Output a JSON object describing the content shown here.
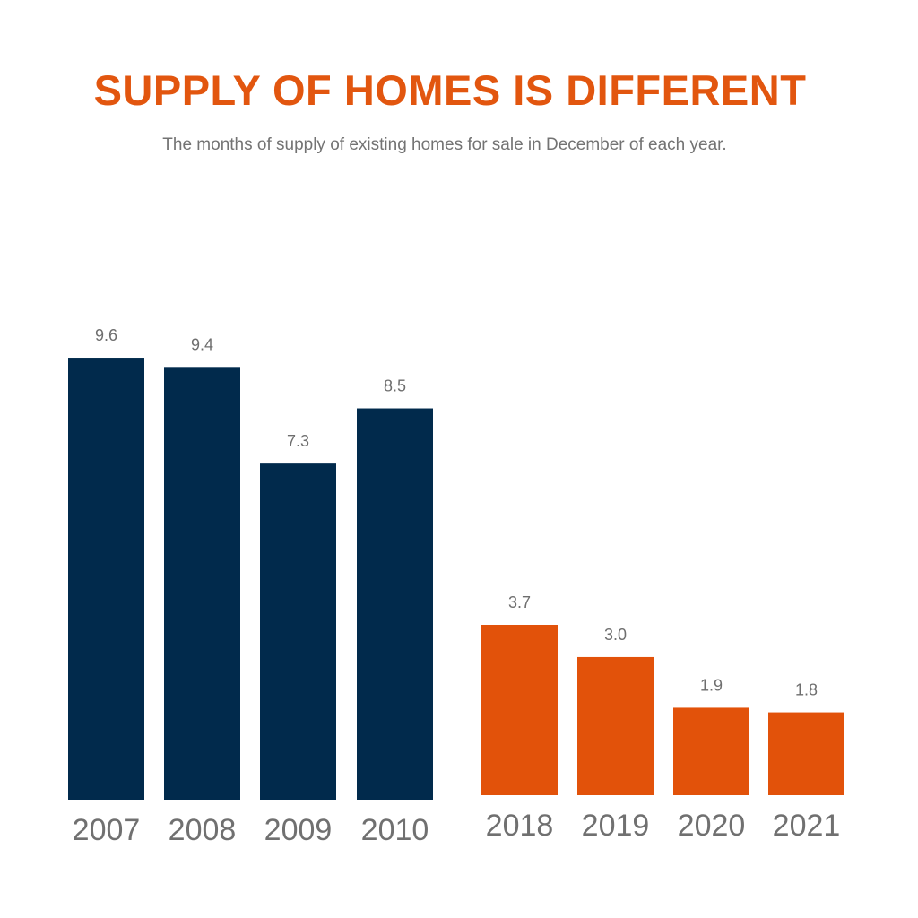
{
  "title": "SUPPLY OF HOMES IS DIFFERENT",
  "subtitle": "The months of supply of existing homes for sale in December of each year.",
  "colors": {
    "title": "#e2560f",
    "group_2007_2010": "#012a4c",
    "group_2018_2021": "#e2520a",
    "labels": "#707070"
  },
  "chart_data": {
    "type": "bar",
    "title": "SUPPLY OF HOMES IS DIFFERENT",
    "subtitle": "The months of supply of existing homes for sale in December of each year.",
    "xlabel": "",
    "ylabel": "",
    "grid": false,
    "legend": "none",
    "categories": [
      "2007",
      "2008",
      "2009",
      "2010",
      "2018",
      "2019",
      "2020",
      "2021"
    ],
    "values": [
      9.6,
      9.4,
      7.3,
      8.5,
      3.7,
      3.0,
      1.9,
      1.8
    ],
    "value_labels": [
      "9.6",
      "9.4",
      "7.3",
      "8.5",
      "3.7",
      "3.0",
      "1.9",
      "1.8"
    ],
    "groups": [
      {
        "categories": [
          "2007",
          "2008",
          "2009",
          "2010"
        ],
        "color": "#012a4c"
      },
      {
        "categories": [
          "2018",
          "2019",
          "2020",
          "2021"
        ],
        "color": "#e2520a"
      }
    ]
  }
}
